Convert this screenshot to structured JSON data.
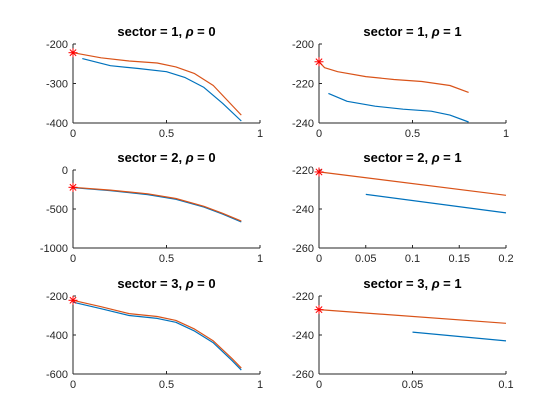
{
  "figure": {
    "rows": 3,
    "cols": 2
  },
  "colors": {
    "blue": "#0072BD",
    "orange": "#D95319",
    "marker": "#FF0000",
    "axis": "#262626"
  },
  "chart_data": [
    {
      "type": "line",
      "title_prefix": "sector = 1, ",
      "rho_symbol": "ρ",
      "title_suffix": " = 0",
      "xlim": [
        0,
        1
      ],
      "ylim": [
        -400,
        -200
      ],
      "xticks": [
        0,
        0.5,
        1
      ],
      "xtick_labels": [
        "0",
        "0.5",
        "1"
      ],
      "yticks": [
        -400,
        -300,
        -200
      ],
      "ytick_labels": [
        "-400",
        "-300",
        "-200"
      ],
      "series": [
        {
          "color": "blue",
          "x": [
            0.05,
            0.2,
            0.35,
            0.5,
            0.6,
            0.7,
            0.8,
            0.9
          ],
          "y": [
            -237,
            -255,
            -262,
            -270,
            -285,
            -310,
            -350,
            -395
          ]
        },
        {
          "color": "orange",
          "x": [
            0,
            0.15,
            0.3,
            0.45,
            0.55,
            0.65,
            0.75,
            0.9
          ],
          "y": [
            -222,
            -235,
            -243,
            -248,
            -258,
            -275,
            -305,
            -380
          ]
        }
      ],
      "markers": [
        {
          "x": 0,
          "y": -222
        }
      ]
    },
    {
      "type": "line",
      "title_prefix": "sector = 1, ",
      "rho_symbol": "ρ",
      "title_suffix": " = 1",
      "xlim": [
        0,
        1
      ],
      "ylim": [
        -240,
        -200
      ],
      "xticks": [
        0,
        0.5,
        1
      ],
      "xtick_labels": [
        "0",
        "0.5",
        "1"
      ],
      "yticks": [
        -240,
        -220,
        -200
      ],
      "ytick_labels": [
        "-240",
        "-220",
        "-200"
      ],
      "series": [
        {
          "color": "blue",
          "x": [
            0.05,
            0.15,
            0.3,
            0.45,
            0.6,
            0.7,
            0.8
          ],
          "y": [
            -225,
            -229,
            -231.5,
            -233,
            -234,
            -236,
            -239.5
          ]
        },
        {
          "color": "orange",
          "x": [
            0,
            0.03,
            0.1,
            0.25,
            0.4,
            0.55,
            0.7,
            0.8
          ],
          "y": [
            -209,
            -212,
            -214,
            -216.5,
            -218,
            -219,
            -221,
            -224.5
          ]
        }
      ],
      "markers": [
        {
          "x": 0,
          "y": -209
        }
      ]
    },
    {
      "type": "line",
      "title_prefix": "sector = 2, ",
      "rho_symbol": "ρ",
      "title_suffix": " = 0",
      "xlim": [
        0,
        1
      ],
      "ylim": [
        -1000,
        0
      ],
      "xticks": [
        0,
        0.5,
        1
      ],
      "xtick_labels": [
        "0",
        "0.5",
        "1"
      ],
      "yticks": [
        -1000,
        -500,
        0
      ],
      "ytick_labels": [
        "-1000",
        "-500",
        "0"
      ],
      "series": [
        {
          "color": "blue",
          "x": [
            0,
            0.2,
            0.4,
            0.55,
            0.7,
            0.8,
            0.9
          ],
          "y": [
            -225,
            -265,
            -315,
            -375,
            -475,
            -565,
            -665
          ]
        },
        {
          "color": "orange",
          "x": [
            0,
            0.2,
            0.4,
            0.55,
            0.7,
            0.8,
            0.9
          ],
          "y": [
            -222,
            -258,
            -305,
            -365,
            -465,
            -555,
            -655
          ]
        }
      ],
      "markers": [
        {
          "x": 0,
          "y": -222
        }
      ]
    },
    {
      "type": "line",
      "title_prefix": "sector = 2, ",
      "rho_symbol": "ρ",
      "title_suffix": " = 1",
      "xlim": [
        0,
        0.2
      ],
      "ylim": [
        -260,
        -220
      ],
      "xticks": [
        0,
        0.05,
        0.1,
        0.15,
        0.2
      ],
      "xtick_labels": [
        "0",
        "0.05",
        "0.1",
        "0.15",
        "0.2"
      ],
      "yticks": [
        -260,
        -240,
        -220
      ],
      "ytick_labels": [
        "-260",
        "-240",
        "-220"
      ],
      "series": [
        {
          "color": "blue",
          "x": [
            0.05,
            0.2
          ],
          "y": [
            -232.5,
            -242
          ]
        },
        {
          "color": "orange",
          "x": [
            0,
            0.2
          ],
          "y": [
            -221,
            -233
          ]
        }
      ],
      "markers": [
        {
          "x": 0,
          "y": -221
        }
      ]
    },
    {
      "type": "line",
      "title_prefix": "sector = 3, ",
      "rho_symbol": "ρ",
      "title_suffix": " = 0",
      "xlim": [
        0,
        1
      ],
      "ylim": [
        -600,
        -200
      ],
      "xticks": [
        0,
        0.5,
        1
      ],
      "xtick_labels": [
        "0",
        "0.5",
        "1"
      ],
      "yticks": [
        -600,
        -400,
        -200
      ],
      "ytick_labels": [
        "-600",
        "-400",
        "-200"
      ],
      "series": [
        {
          "color": "blue",
          "x": [
            0,
            0.15,
            0.3,
            0.45,
            0.55,
            0.65,
            0.75,
            0.85,
            0.9
          ],
          "y": [
            -232,
            -265,
            -300,
            -315,
            -335,
            -380,
            -440,
            -530,
            -580
          ]
        },
        {
          "color": "orange",
          "x": [
            0,
            0.15,
            0.3,
            0.45,
            0.55,
            0.65,
            0.75,
            0.85,
            0.9
          ],
          "y": [
            -222,
            -255,
            -290,
            -305,
            -325,
            -370,
            -430,
            -520,
            -570
          ]
        }
      ],
      "markers": [
        {
          "x": 0,
          "y": -222
        }
      ]
    },
    {
      "type": "line",
      "title_prefix": "sector = 3, ",
      "rho_symbol": "ρ",
      "title_suffix": " = 1",
      "xlim": [
        0,
        0.1
      ],
      "ylim": [
        -260,
        -220
      ],
      "xticks": [
        0,
        0.05,
        0.1
      ],
      "xtick_labels": [
        "0",
        "0.05",
        "0.1"
      ],
      "yticks": [
        -260,
        -240,
        -220
      ],
      "ytick_labels": [
        "-260",
        "-240",
        "-220"
      ],
      "series": [
        {
          "color": "blue",
          "x": [
            0.05,
            0.1
          ],
          "y": [
            -238.5,
            -243
          ]
        },
        {
          "color": "orange",
          "x": [
            0,
            0.1
          ],
          "y": [
            -227,
            -234
          ]
        }
      ],
      "markers": [
        {
          "x": 0,
          "y": -227
        }
      ]
    }
  ]
}
